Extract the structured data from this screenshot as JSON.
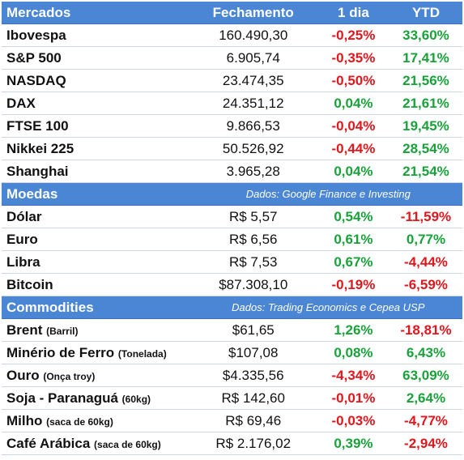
{
  "header": {
    "col1": "Mercados",
    "col2": "Fechamento",
    "col3": "1 dia",
    "col4": "YTD"
  },
  "markets": [
    {
      "name": "Ibovespa",
      "close": "160.490,30",
      "day": "-0,25%",
      "ytd": "33,60%",
      "day_sign": "neg",
      "ytd_sign": "pos"
    },
    {
      "name": "S&P 500",
      "close": "6.905,74",
      "day": "-0,35%",
      "ytd": "17,41%",
      "day_sign": "neg",
      "ytd_sign": "pos"
    },
    {
      "name": "NASDAQ",
      "close": "23.474,35",
      "day": "-0,50%",
      "ytd": "21,56%",
      "day_sign": "neg",
      "ytd_sign": "pos"
    },
    {
      "name": "DAX",
      "close": "24.351,12",
      "day": "0,04%",
      "ytd": "21,61%",
      "day_sign": "pos",
      "ytd_sign": "pos"
    },
    {
      "name": "FTSE 100",
      "close": "9.866,53",
      "day": "-0,04%",
      "ytd": "19,45%",
      "day_sign": "neg",
      "ytd_sign": "pos"
    },
    {
      "name": "Nikkei 225",
      "close": "50.526,92",
      "day": "-0,44%",
      "ytd": "28,54%",
      "day_sign": "neg",
      "ytd_sign": "pos"
    },
    {
      "name": "Shanghai",
      "close": "3.965,28",
      "day": "0,04%",
      "ytd": "21,54%",
      "day_sign": "pos",
      "ytd_sign": "pos"
    }
  ],
  "currencies_header": {
    "title": "Moedas",
    "source": "Dados: Google Finance e Investing"
  },
  "currencies": [
    {
      "name": "Dólar",
      "close": "R$ 5,57",
      "day": "0,54%",
      "ytd": "-11,59%",
      "day_sign": "pos",
      "ytd_sign": "neg"
    },
    {
      "name": "Euro",
      "close": "R$ 6,56",
      "day": "0,61%",
      "ytd": "0,77%",
      "day_sign": "pos",
      "ytd_sign": "pos"
    },
    {
      "name": "Libra",
      "close": "R$ 7,53",
      "day": "0,67%",
      "ytd": "-4,44%",
      "day_sign": "pos",
      "ytd_sign": "neg"
    },
    {
      "name": "Bitcoin",
      "close": "$87.308,10",
      "day": "-0,19%",
      "ytd": "-6,59%",
      "day_sign": "neg",
      "ytd_sign": "neg"
    }
  ],
  "commodities_header": {
    "title": "Commodities",
    "source": "Dados: Trading Economics e Cepea USP"
  },
  "commodities": [
    {
      "name": "Brent",
      "unit": "(Barril)",
      "close": "$61,65",
      "day": "1,26%",
      "ytd": "-18,81%",
      "day_sign": "pos",
      "ytd_sign": "neg"
    },
    {
      "name": "Minério de Ferro",
      "unit": "(Tonelada)",
      "close": "$107,08",
      "day": "0,08%",
      "ytd": "6,43%",
      "day_sign": "pos",
      "ytd_sign": "pos"
    },
    {
      "name": "Ouro",
      "unit": "(Onça troy)",
      "close": "$4.335,56",
      "day": "-4,34%",
      "ytd": "63,09%",
      "day_sign": "neg",
      "ytd_sign": "pos"
    },
    {
      "name": "Soja - Paranaguá",
      "unit": "(60kg)",
      "close": "R$ 142,60",
      "day": "-0,01%",
      "ytd": "2,64%",
      "day_sign": "neg",
      "ytd_sign": "pos"
    },
    {
      "name": "Milho",
      "unit": "(saca de 60kg)",
      "close": "R$ 69,46",
      "day": "-0,03%",
      "ytd": "-4,77%",
      "day_sign": "neg",
      "ytd_sign": "neg"
    },
    {
      "name": "Café Arábica",
      "unit": "(saca de 60kg)",
      "close": "R$ 2.176,02",
      "day": "0,39%",
      "ytd": "-2,94%",
      "day_sign": "pos",
      "ytd_sign": "neg"
    }
  ]
}
